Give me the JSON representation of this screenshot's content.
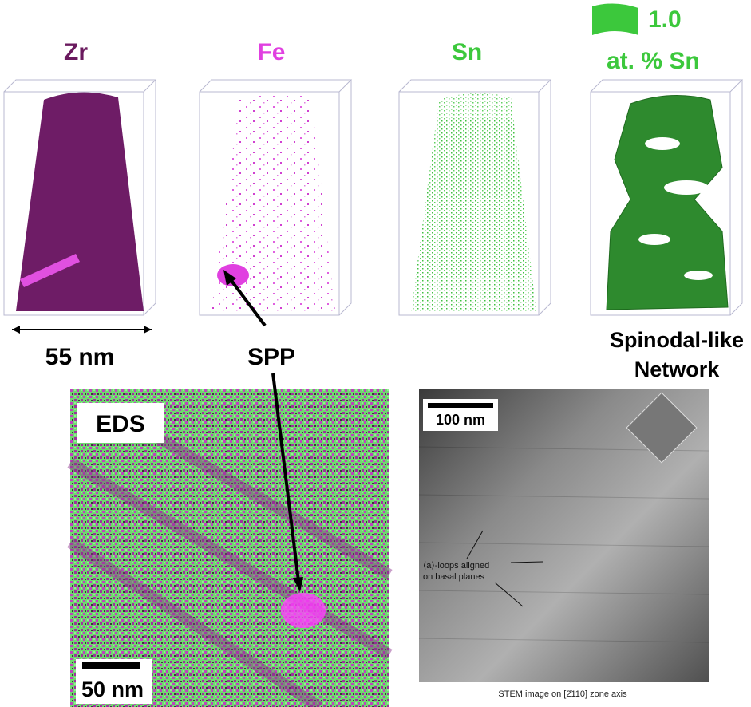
{
  "panels": {
    "zr": {
      "label": "Zr",
      "scale": "55 nm"
    },
    "fe": {
      "label": "Fe",
      "annotation": "SPP"
    },
    "sn": {
      "label": "Sn"
    },
    "iso": {
      "value": "1.0",
      "unit": "at. % Sn",
      "caption_line1": "Spinodal-like",
      "caption_line2": "Network"
    },
    "eds": {
      "label": "EDS",
      "scale": "50 nm"
    },
    "stem": {
      "scale": "100 nm",
      "note_line1": "⟨a⟩-loops aligned",
      "note_line2": "on basal planes",
      "caption": "STEM image on [2̄110] zone axis"
    }
  }
}
